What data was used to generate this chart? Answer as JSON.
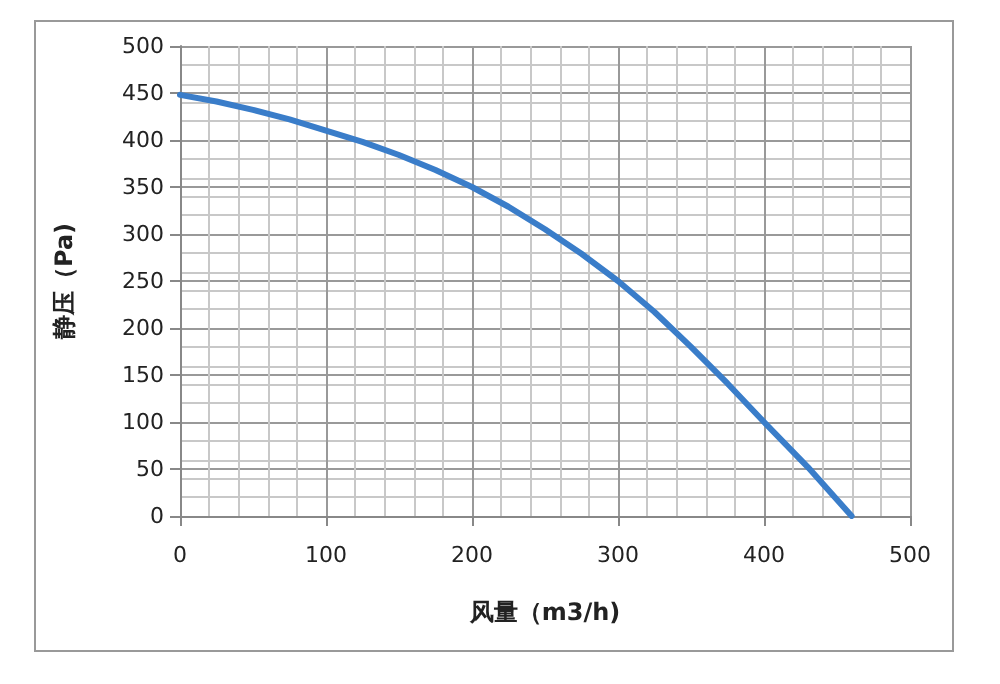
{
  "chart_data": {
    "type": "line",
    "xlabel": "风量（m3/h)",
    "ylabel": "静压（Pa)",
    "x": [
      0,
      25,
      50,
      75,
      100,
      125,
      150,
      175,
      200,
      225,
      250,
      275,
      300,
      325,
      350,
      375,
      400,
      430,
      460
    ],
    "series": [
      {
        "color": "#3a7dc9",
        "values": [
          448,
          441,
          432,
          422,
          410,
          398,
          384,
          368,
          350,
          329,
          305,
          279,
          250,
          217,
          180,
          141,
          100,
          52,
          0
        ]
      }
    ],
    "xlim": [
      0,
      500
    ],
    "xticks": [
      0,
      100,
      200,
      300,
      400,
      500
    ],
    "ylim": [
      0,
      500
    ],
    "yticks": [
      0,
      50,
      100,
      150,
      200,
      250,
      300,
      350,
      400,
      450,
      500
    ],
    "grid": true,
    "marker": "none",
    "line_style": "solid"
  }
}
